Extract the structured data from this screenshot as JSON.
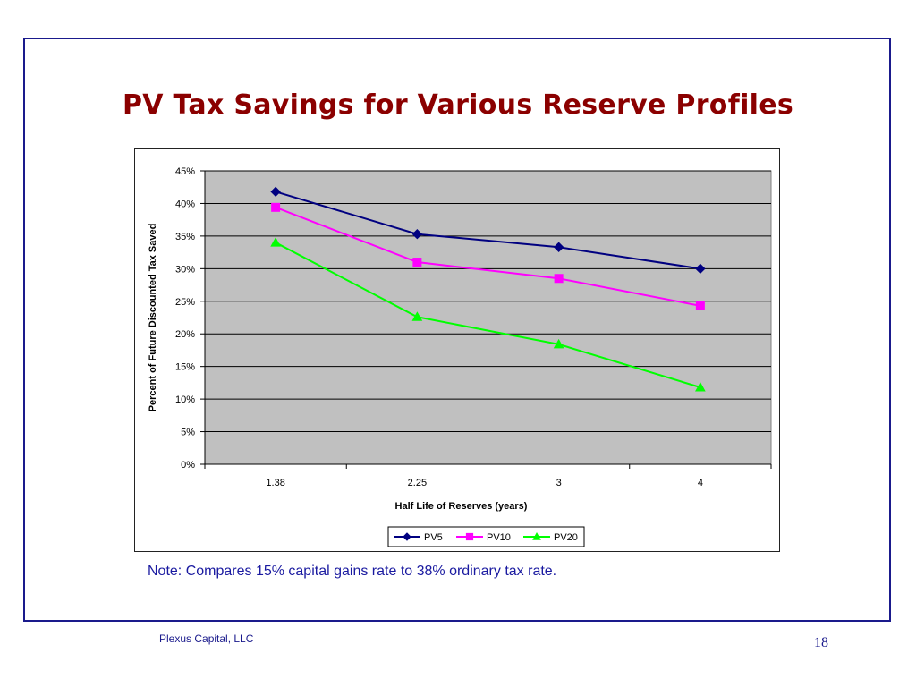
{
  "slide": {
    "title": "PV Tax Savings for Various Reserve Profiles",
    "note": "Note: Compares 15% capital gains rate to 38% ordinary tax rate.",
    "footer_left": "Plexus Capital, LLC",
    "page_number": "18"
  },
  "colors": {
    "title": "#8b0000",
    "frame": "#1a1a8c",
    "plot_background": "#c0c0c0",
    "pv5": "#000080",
    "pv10": "#ff00ff",
    "pv20": "#00ff00"
  },
  "chart_data": {
    "type": "line",
    "xlabel": "Half Life of Reserves (years)",
    "ylabel": "Percent of Future Discounted Tax Saved",
    "categories": [
      "1.38",
      "2.25",
      "3",
      "4"
    ],
    "y_ticks": [
      "0%",
      "5%",
      "10%",
      "15%",
      "20%",
      "25%",
      "30%",
      "35%",
      "40%",
      "45%"
    ],
    "ylim": [
      0,
      45
    ],
    "grid": true,
    "legend_position": "bottom",
    "series": [
      {
        "name": "PV5",
        "values": [
          41.8,
          35.3,
          33.3,
          30.0
        ],
        "color": "#000080",
        "marker": "diamond"
      },
      {
        "name": "PV10",
        "values": [
          39.4,
          31.0,
          28.5,
          24.3
        ],
        "color": "#ff00ff",
        "marker": "square"
      },
      {
        "name": "PV20",
        "values": [
          34.0,
          22.6,
          18.4,
          11.8
        ],
        "color": "#00ff00",
        "marker": "triangle"
      }
    ]
  }
}
